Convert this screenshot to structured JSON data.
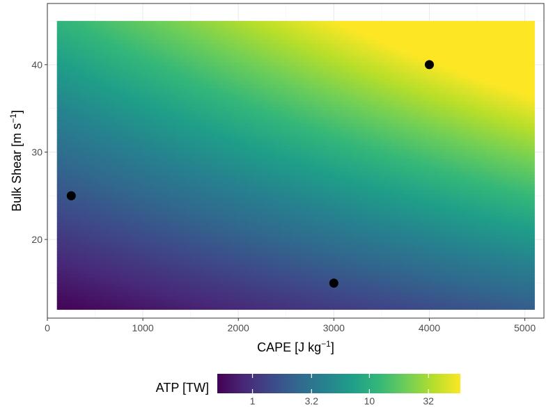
{
  "chart_data": {
    "type": "heatmap",
    "x_label_main": "CAPE [J kg",
    "x_label_sup": "−1",
    "x_label_end": "]",
    "y_label_main": "Bulk Shear [m s",
    "y_label_sup": "−1",
    "y_label_end": "]",
    "x_range": [
      0,
      5200
    ],
    "y_range": [
      11,
      47
    ],
    "field_x_extent": [
      100,
      5100
    ],
    "field_y_extent": [
      12,
      45
    ],
    "x_ticks": [
      {
        "value": 0,
        "label": "0"
      },
      {
        "value": 1000,
        "label": "1000"
      },
      {
        "value": 2000,
        "label": "2000"
      },
      {
        "value": 3000,
        "label": "3000"
      },
      {
        "value": 4000,
        "label": "4000"
      },
      {
        "value": 5000,
        "label": "5000"
      }
    ],
    "x_minor": [
      500,
      1500,
      2500,
      3500,
      4500
    ],
    "y_ticks": [
      {
        "value": 20,
        "label": "20"
      },
      {
        "value": 30,
        "label": "30"
      },
      {
        "value": 40,
        "label": "40"
      }
    ],
    "y_minor": [
      15,
      25,
      35,
      45
    ],
    "points": [
      {
        "x": 250,
        "y": 25
      },
      {
        "x": 3000,
        "y": 15
      },
      {
        "x": 4000,
        "y": 40
      }
    ],
    "colorbar": {
      "title": "ATP [TW]",
      "scale": "log10",
      "range": [
        0.5,
        60
      ],
      "ticks": [
        {
          "value": 1,
          "label": "1"
        },
        {
          "value": 3.2,
          "label": "3.2"
        },
        {
          "value": 10,
          "label": "10"
        },
        {
          "value": 32,
          "label": "32"
        }
      ],
      "colormap": [
        "#440154",
        "#482878",
        "#3e4989",
        "#31688e",
        "#26828e",
        "#1f9e89",
        "#35b779",
        "#6ece58",
        "#b5de2b",
        "#fde725"
      ]
    },
    "grid": true,
    "legend_position": "bottom"
  }
}
